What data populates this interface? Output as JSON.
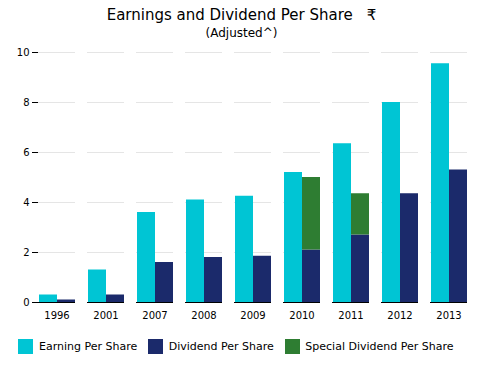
{
  "chart_data": {
    "type": "bar",
    "title": "Earnings and Dividend Per Share",
    "subtitle": "(Adjusted^)",
    "annotations": [
      "₹"
    ],
    "categories": [
      "1996",
      "2001",
      "2007",
      "2008",
      "2009",
      "2010",
      "2011",
      "2012",
      "2013"
    ],
    "series": [
      {
        "name": "Earning Per Share",
        "color": "#00C5D4",
        "values": [
          0.3,
          1.3,
          3.6,
          4.1,
          4.25,
          5.2,
          6.35,
          8.0,
          9.55
        ]
      },
      {
        "name": "Dividend Per Share",
        "color": "#1B2A6B",
        "values": [
          0.1,
          0.3,
          1.6,
          1.8,
          1.85,
          2.1,
          2.7,
          4.35,
          5.3
        ]
      },
      {
        "name": "Special Dividend Per Share",
        "color": "#2E7D32",
        "stacked": true,
        "values": [
          0,
          0,
          0,
          0,
          0,
          2.9,
          1.65,
          0,
          0
        ]
      }
    ],
    "ylim": [
      0,
      10
    ],
    "yticks": [
      0,
      2,
      4,
      6,
      8,
      10
    ],
    "grid": true,
    "legend": "bottom"
  }
}
